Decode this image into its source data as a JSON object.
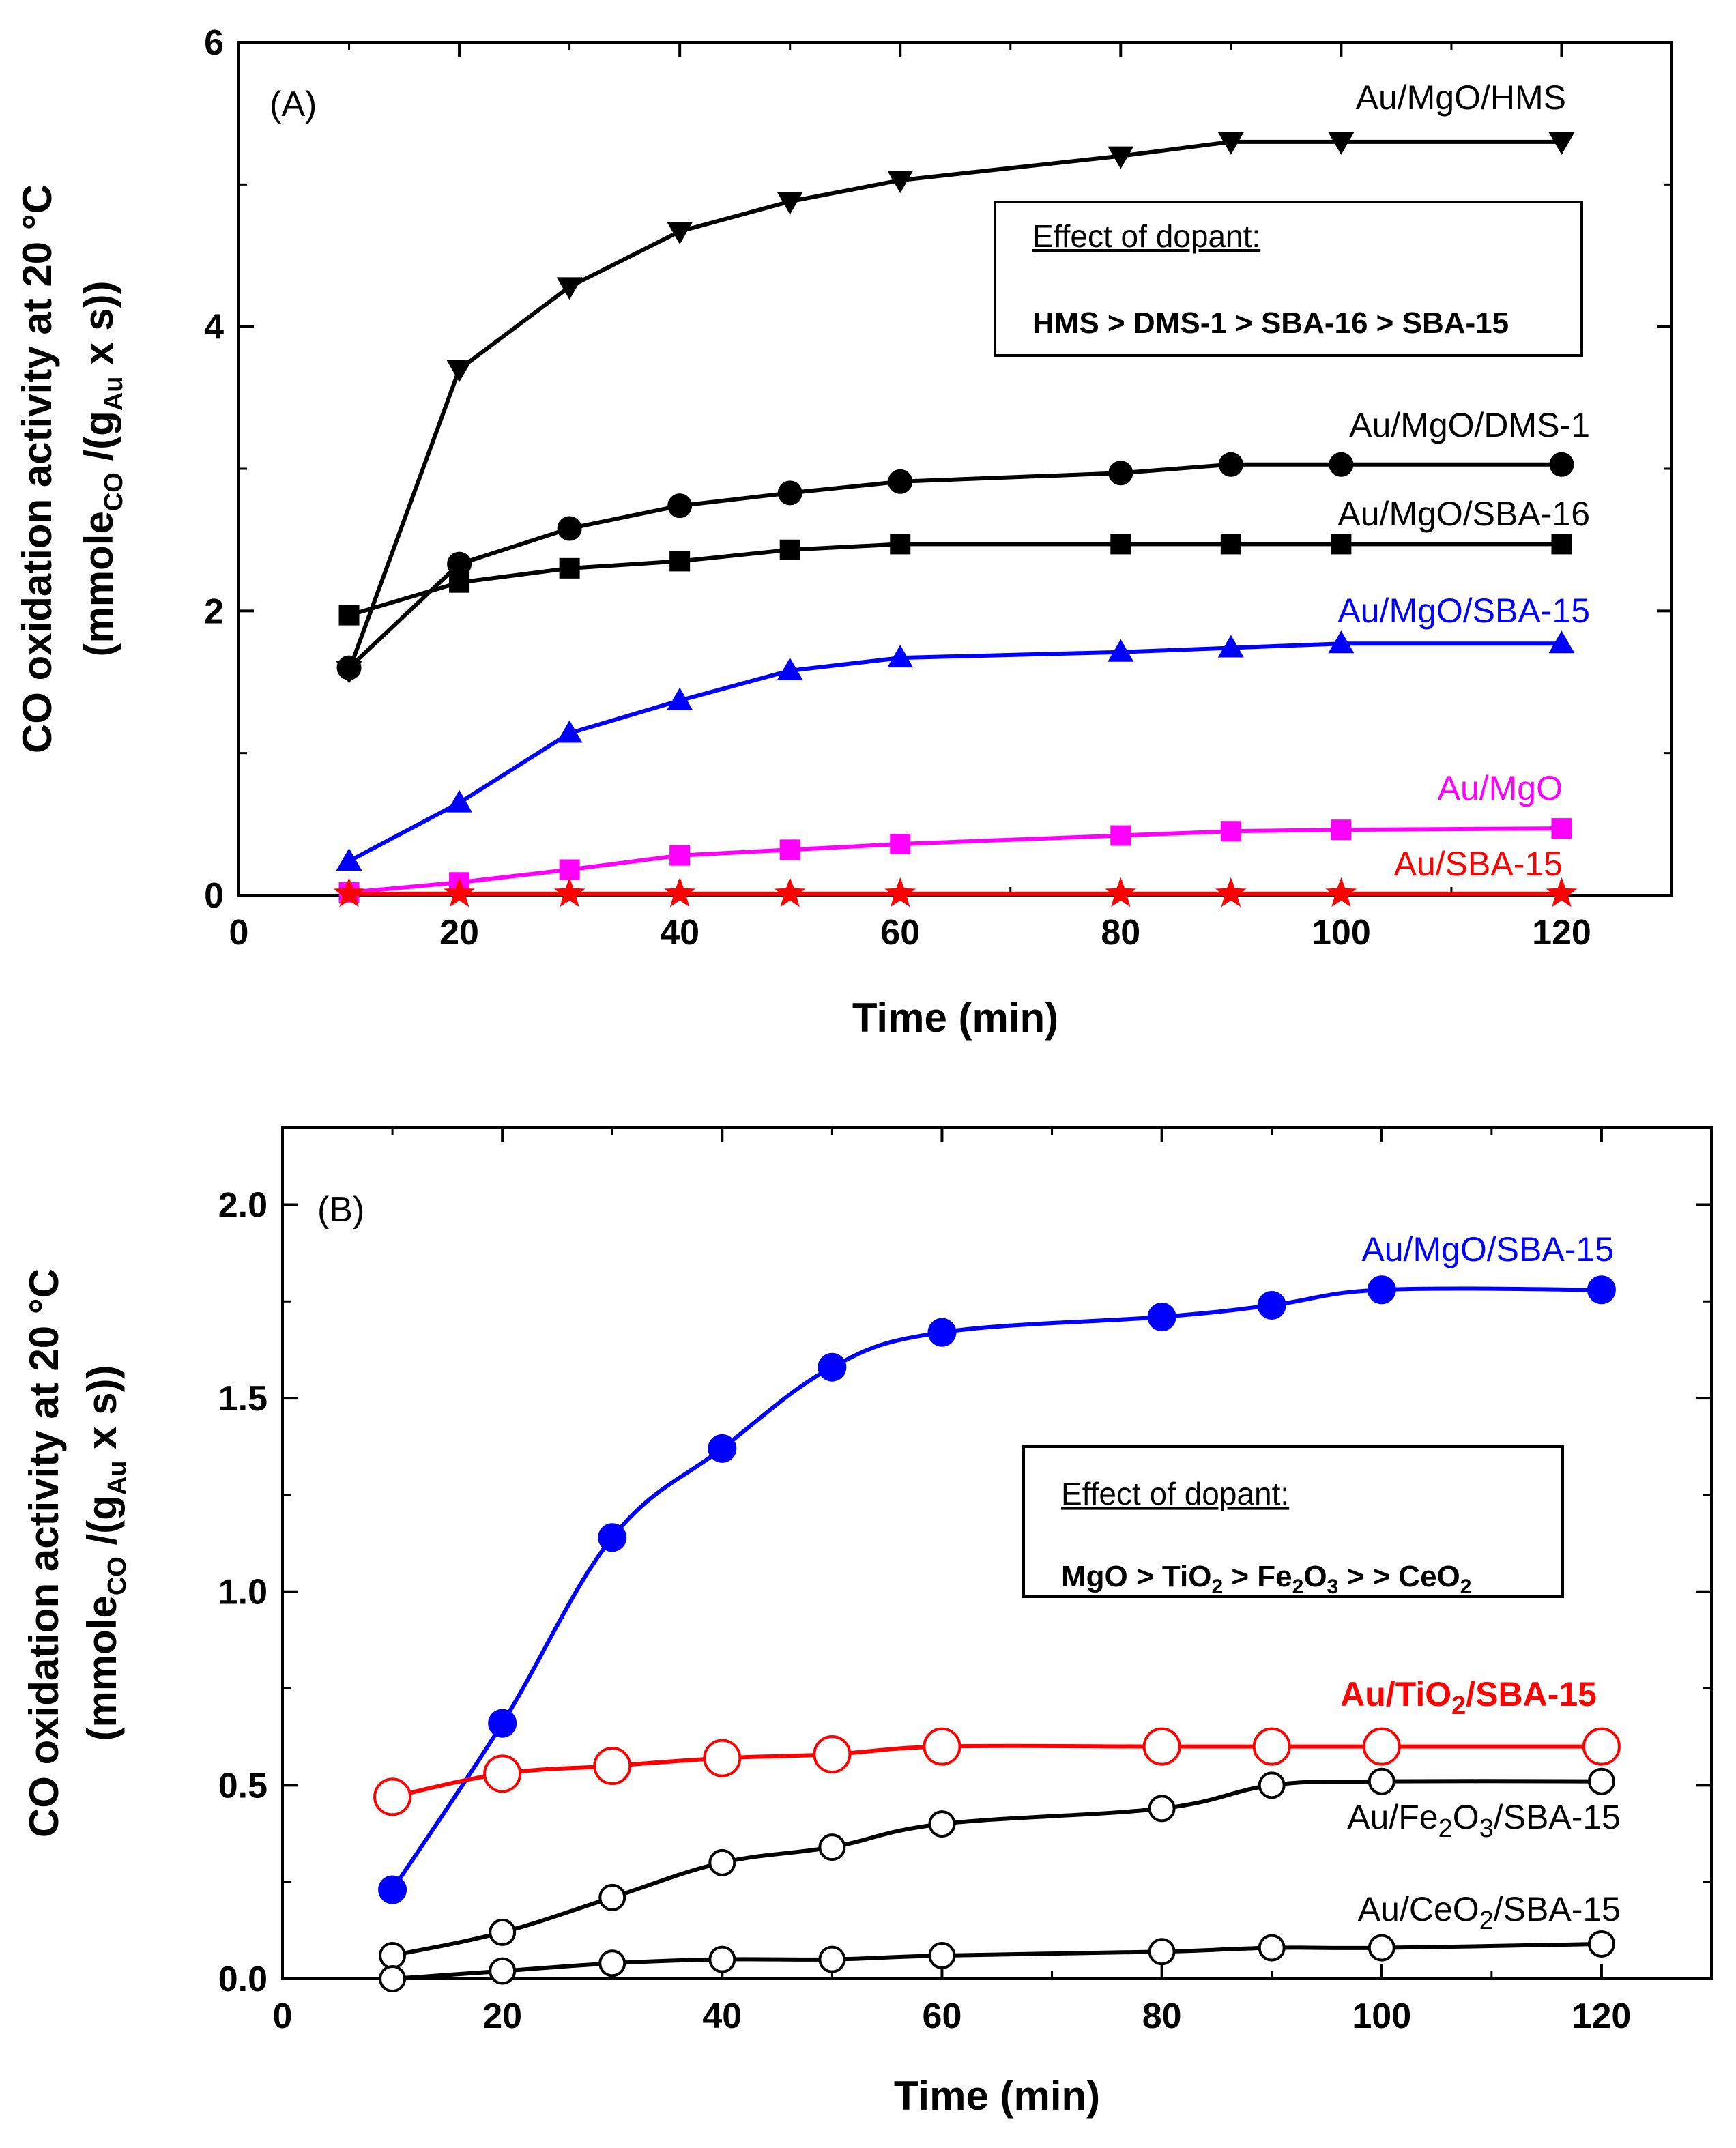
{
  "chart_data": [
    {
      "panel": "(A)",
      "type": "line",
      "xlabel": "Time (min)",
      "ylabel_line1": "CO oxidation activity at 20 °C",
      "ylabel_line2": {
        "a": "(mmole",
        "b": "CO",
        "c": " /(g",
        "d": "Au",
        "e": " x s))"
      },
      "xlim": [
        0,
        130
      ],
      "ylim": [
        0,
        6
      ],
      "xticks": [
        0,
        20,
        40,
        60,
        80,
        100,
        120
      ],
      "xtick_labels": [
        "0",
        "20",
        "40",
        "60",
        "80",
        "100",
        "120"
      ],
      "yticks": [
        0,
        2,
        4,
        6
      ],
      "ytick_labels": [
        "0",
        "2",
        "4",
        "6"
      ],
      "annotation": {
        "title": "Effect of dopant:",
        "ranking": "HMS > DMS-1 > SBA-16 > SBA-15"
      },
      "series": [
        {
          "name": "Au/MgO/HMS",
          "color": "#000000",
          "marker": "triangle-down",
          "x": [
            10,
            20,
            30,
            40,
            50,
            60,
            80,
            90,
            100,
            120
          ],
          "values": [
            1.58,
            3.7,
            4.28,
            4.67,
            4.88,
            5.03,
            5.2,
            5.3,
            5.3,
            5.3
          ]
        },
        {
          "name": "Au/MgO/DMS-1",
          "color": "#000000",
          "marker": "circle",
          "x": [
            10,
            20,
            30,
            40,
            50,
            60,
            80,
            90,
            100,
            120
          ],
          "values": [
            1.6,
            2.33,
            2.58,
            2.74,
            2.83,
            2.91,
            2.97,
            3.03,
            3.03,
            3.03
          ]
        },
        {
          "name": "Au/MgO/SBA-16",
          "color": "#000000",
          "marker": "square",
          "x": [
            10,
            20,
            30,
            40,
            50,
            60,
            80,
            90,
            100,
            120
          ],
          "values": [
            1.97,
            2.2,
            2.3,
            2.35,
            2.43,
            2.47,
            2.47,
            2.47,
            2.47,
            2.47
          ]
        },
        {
          "name": "Au/MgO/SBA-15",
          "color": "#0000ff",
          "marker": "triangle-up",
          "x": [
            10,
            20,
            30,
            40,
            50,
            60,
            80,
            90,
            100,
            120
          ],
          "values": [
            0.24,
            0.65,
            1.14,
            1.37,
            1.58,
            1.67,
            1.71,
            1.74,
            1.77,
            1.77
          ]
        },
        {
          "name": "Au/MgO",
          "color": "#ff00ff",
          "marker": "square",
          "x": [
            10,
            20,
            30,
            40,
            50,
            60,
            80,
            90,
            100,
            120
          ],
          "values": [
            0.02,
            0.09,
            0.18,
            0.28,
            0.32,
            0.36,
            0.42,
            0.45,
            0.46,
            0.47
          ]
        },
        {
          "name": "Au/SBA-15",
          "color": "#ff0000",
          "marker": "star",
          "x": [
            10,
            20,
            30,
            40,
            50,
            60,
            80,
            90,
            100,
            120
          ],
          "values": [
            0.01,
            0.01,
            0.01,
            0.01,
            0.01,
            0.01,
            0.01,
            0.01,
            0.01,
            0.01
          ]
        }
      ]
    },
    {
      "panel": "(B)",
      "type": "line",
      "xlabel": "Time (min)",
      "ylabel_line1": "CO oxidation activity at 20 °C",
      "ylabel_line2": {
        "a": "(mmole",
        "b": "CO",
        "c": " /(g",
        "d": "Au",
        "e": " x s))"
      },
      "xlim": [
        0,
        130
      ],
      "ylim": [
        0,
        2.2
      ],
      "xticks": [
        0,
        20,
        40,
        60,
        80,
        100,
        120
      ],
      "xtick_labels": [
        "0",
        "20",
        "40",
        "60",
        "80",
        "100",
        "120"
      ],
      "yticks": [
        0,
        0.5,
        1.0,
        1.5,
        2.0
      ],
      "ytick_labels": [
        "0.0",
        "0.5",
        "1.0",
        "1.5",
        "2.0"
      ],
      "annotation": {
        "title": "Effect of dopant:",
        "ranking_parts": [
          "MgO > TiO",
          "2",
          " > Fe",
          "2",
          "O",
          "3",
          " > > CeO",
          "2"
        ]
      },
      "series": [
        {
          "name": "Au/MgO/SBA-15",
          "color": "#0000ff",
          "marker": "filled-circle",
          "label_parts": [
            "Au/MgO/SBA-15"
          ],
          "x": [
            10,
            20,
            30,
            40,
            50,
            60,
            80,
            90,
            100,
            120
          ],
          "values": [
            0.23,
            0.66,
            1.14,
            1.37,
            1.58,
            1.67,
            1.71,
            1.74,
            1.78,
            1.78
          ]
        },
        {
          "name": "Au/TiO2/SBA-15",
          "color": "#ff0000",
          "marker": "open-circle",
          "label_parts": [
            "Au/TiO",
            "2",
            "/SBA-15"
          ],
          "x": [
            10,
            20,
            30,
            40,
            50,
            60,
            80,
            90,
            100,
            120
          ],
          "values": [
            0.47,
            0.53,
            0.55,
            0.57,
            0.58,
            0.6,
            0.6,
            0.6,
            0.6,
            0.6
          ]
        },
        {
          "name": "Au/Fe2O3/SBA-15",
          "color": "#000000",
          "marker": "open-circle",
          "label_parts": [
            "Au/Fe",
            "2",
            "O",
            "3",
            "/SBA-15"
          ],
          "x": [
            10,
            20,
            30,
            40,
            50,
            60,
            80,
            90,
            100,
            120
          ],
          "values": [
            0.06,
            0.12,
            0.21,
            0.3,
            0.34,
            0.4,
            0.44,
            0.5,
            0.51,
            0.51
          ]
        },
        {
          "name": "Au/CeO2/SBA-15",
          "color": "#000000",
          "marker": "open-circle",
          "label_parts": [
            "Au/CeO",
            "2",
            "/SBA-15"
          ],
          "x": [
            10,
            20,
            30,
            40,
            50,
            60,
            80,
            90,
            100,
            120
          ],
          "values": [
            0.0,
            0.02,
            0.04,
            0.05,
            0.05,
            0.06,
            0.07,
            0.08,
            0.08,
            0.09
          ]
        }
      ]
    }
  ]
}
